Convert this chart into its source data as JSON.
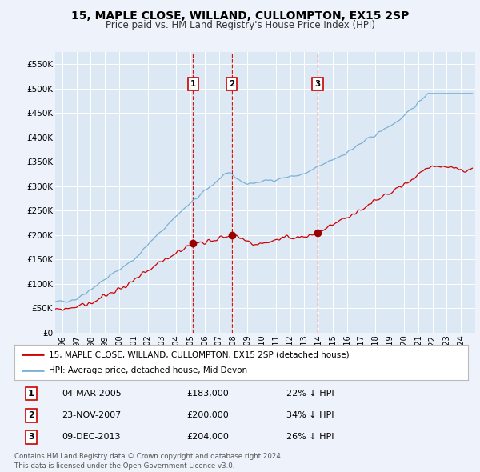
{
  "title": "15, MAPLE CLOSE, WILLAND, CULLOMPTON, EX15 2SP",
  "subtitle": "Price paid vs. HM Land Registry's House Price Index (HPI)",
  "title_fontsize": 10,
  "subtitle_fontsize": 8.5,
  "bg_color": "#eef2fa",
  "plot_bg_color": "#dde8f5",
  "grid_color": "#ffffff",
  "ylim": [
    0,
    575000
  ],
  "yticks": [
    0,
    50000,
    100000,
    150000,
    200000,
    250000,
    300000,
    350000,
    400000,
    450000,
    500000,
    550000
  ],
  "ytick_labels": [
    "£0",
    "£50K",
    "£100K",
    "£150K",
    "£200K",
    "£250K",
    "£300K",
    "£350K",
    "£400K",
    "£450K",
    "£500K",
    "£550K"
  ],
  "sale_dates": [
    2005.17,
    2007.9,
    2013.93
  ],
  "sale_prices": [
    183000,
    200000,
    204000
  ],
  "sale_labels": [
    "1",
    "2",
    "3"
  ],
  "legend_house_label": "15, MAPLE CLOSE, WILLAND, CULLOMPTON, EX15 2SP (detached house)",
  "legend_hpi_label": "HPI: Average price, detached house, Mid Devon",
  "house_line_color": "#cc0000",
  "hpi_line_color": "#7ab0d4",
  "sale_marker_color": "#990000",
  "sale_vline_color": "#cc0000",
  "table_rows": [
    [
      "1",
      "04-MAR-2005",
      "£183,000",
      "22% ↓ HPI"
    ],
    [
      "2",
      "23-NOV-2007",
      "£200,000",
      "34% ↓ HPI"
    ],
    [
      "3",
      "09-DEC-2013",
      "£204,000",
      "26% ↓ HPI"
    ]
  ],
  "footnote": "Contains HM Land Registry data © Crown copyright and database right 2024.\nThis data is licensed under the Open Government Licence v3.0.",
  "xmin": 1995.5,
  "xmax": 2025.0
}
